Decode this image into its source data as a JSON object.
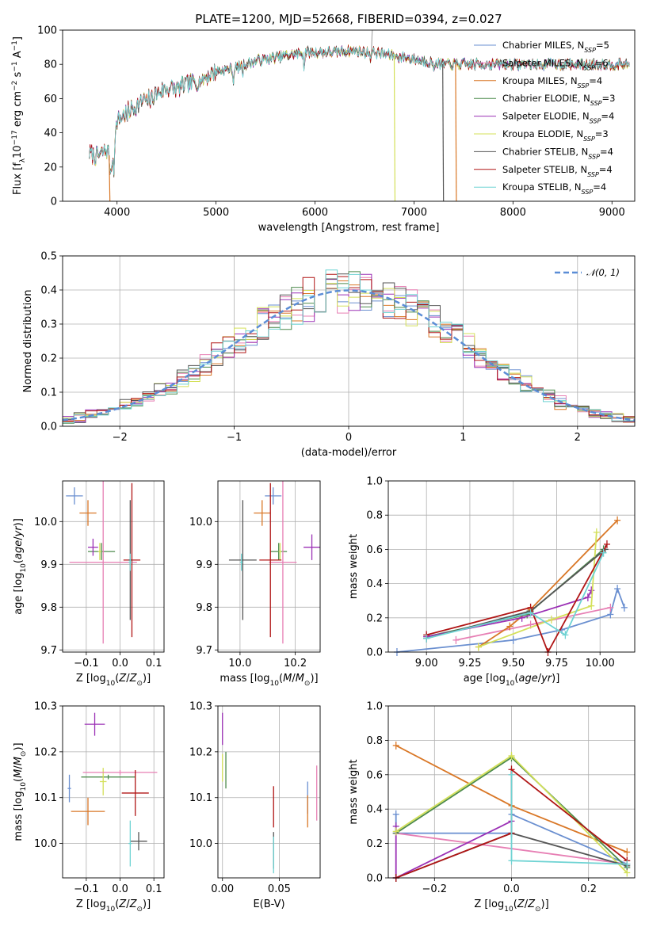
{
  "figure": {
    "title": "PLATE=1200, MJD=52668, FIBERID=0394, z=0.027"
  },
  "chart_data": [
    {
      "id": "spectrum",
      "type": "line",
      "title": "PLATE=1200, MJD=52668, FIBERID=0394, z=0.027",
      "xlabel": "wavelength [Angstrom, rest frame]",
      "ylabel": "Flux [fλ10⁻¹⁷ erg cm⁻² s⁻¹ A⁻¹]",
      "xlim": [
        3450,
        9230
      ],
      "ylim": [
        0,
        100
      ],
      "xticks": [
        4000,
        5000,
        6000,
        7000,
        8000,
        9000
      ],
      "yticks": [
        0,
        20,
        40,
        60,
        80,
        100
      ],
      "grid": false,
      "legend_position": "upper-right",
      "continuum": {
        "x": [
          3720,
          3800,
          3900,
          3950,
          4000,
          4100,
          4200,
          4300,
          4400,
          4500,
          4600,
          4700,
          4800,
          4900,
          5000,
          5100,
          5200,
          5300,
          5400,
          5500,
          5600,
          5700,
          5800,
          5900,
          6000,
          6100,
          6200,
          6300,
          6400,
          6500,
          6600,
          6700,
          6800,
          6900,
          7000,
          7100,
          7200,
          7300,
          7400,
          7500,
          7600,
          7700,
          7800,
          7900,
          8000,
          8100,
          8200,
          8300,
          8400,
          8500,
          8600,
          8700,
          8800,
          8900,
          9000,
          9100,
          9180
        ],
        "y": [
          28,
          26,
          30,
          22,
          47,
          52,
          56,
          60,
          63,
          66,
          66,
          68,
          70,
          73,
          76,
          77,
          78,
          80,
          82,
          83,
          84,
          85,
          86,
          87,
          87,
          87,
          87,
          88,
          88,
          87,
          87,
          86,
          85,
          84,
          83,
          82,
          81,
          80,
          80,
          80,
          80,
          80,
          80,
          80,
          80,
          80,
          80,
          80,
          80,
          80,
          80,
          80,
          80,
          80,
          80,
          80,
          80
        ]
      },
      "series": [
        {
          "name": "Chabrier MILES, N_SSP=5",
          "label_main": "Chabrier MILES, N",
          "label_sub": "SSP",
          "label_end": "=5",
          "color": "#6a8fd0"
        },
        {
          "name": "Salpeter MILES, N_SSP=6",
          "label_main": "Salpeter MILES, N",
          "label_sub": "SSP",
          "label_end": "=6",
          "color": "#e77fb4"
        },
        {
          "name": "Kroupa MILES, N_SSP=4",
          "label_main": "Kroupa MILES, N",
          "label_sub": "SSP",
          "label_end": "=4",
          "color": "#d97726"
        },
        {
          "name": "Chabrier ELODIE, N_SSP=3",
          "label_main": "Chabrier ELODIE, N",
          "label_sub": "SSP",
          "label_end": "=3",
          "color": "#4c8a4c"
        },
        {
          "name": "Salpeter ELODIE, N_SSP=4",
          "label_main": "Salpeter ELODIE, N",
          "label_sub": "SSP",
          "label_end": "=4",
          "color": "#9b30b5"
        },
        {
          "name": "Kroupa ELODIE, N_SSP=3",
          "label_main": "Kroupa ELODIE, N",
          "label_sub": "SSP",
          "label_end": "=3",
          "color": "#d4e05a"
        },
        {
          "name": "Chabrier STELIB, N_SSP=4",
          "label_main": "Chabrier STELIB, N",
          "label_sub": "SSP",
          "label_end": "=4",
          "color": "#555555"
        },
        {
          "name": "Salpeter STELIB, N_SSP=4",
          "label_main": "Salpeter STELIB, N",
          "label_sub": "SSP",
          "label_end": "=4",
          "color": "#b01515"
        },
        {
          "name": "Kroupa STELIB, N_SSP=4",
          "label_main": "Kroupa STELIB, N",
          "label_sub": "SSP",
          "label_end": "=4",
          "color": "#6fd3d3"
        }
      ],
      "dips": [
        {
          "x": 3920,
          "y_min": 0,
          "color": "#d97726"
        },
        {
          "x": 6800,
          "y_min": 0,
          "color": "#d4e05a"
        },
        {
          "x": 7290,
          "y_min": 0,
          "color": "#555555"
        },
        {
          "x": 7420,
          "y_min": 0,
          "color": "#d97726"
        },
        {
          "x": 6570,
          "y_max": 100,
          "color": "#aaaaaa"
        }
      ]
    },
    {
      "id": "residuals",
      "type": "histogram",
      "xlabel": "(data-model)/error",
      "ylabel": "Normed distribution",
      "xlim": [
        -2.5,
        2.5
      ],
      "ylim": [
        0,
        0.5
      ],
      "xticks": [
        -2,
        -1,
        0,
        1,
        2
      ],
      "xtick_labels": [
        "−2",
        "−1",
        "0",
        "1",
        "2"
      ],
      "yticks": [
        0,
        0.1,
        0.2,
        0.3,
        0.4,
        0.5
      ],
      "ytick_labels": [
        "0.0",
        "0.1",
        "0.2",
        "0.3",
        "0.4",
        "0.5"
      ],
      "grid": true,
      "bin_width": 0.1,
      "legend": "𝒩(0, 1)",
      "legend_position": "upper-right",
      "gaussian": {
        "mean": 0,
        "sigma": 1,
        "color": "#5b8dd6",
        "style": "dashed"
      }
    },
    {
      "id": "age-vs-Z",
      "type": "errorbar",
      "xlabel": "Z [log₁₀(Z/Z⊙)]",
      "ylabel": "age  [log₁₀(age/yr)]",
      "xlim": [
        -0.17,
        0.13
      ],
      "ylim": [
        9.695,
        10.095
      ],
      "xticks": [
        -0.1,
        0.0,
        0.1
      ],
      "xtick_labels": [
        "−0.1",
        "0.0",
        "0.1"
      ],
      "yticks": [
        9.7,
        9.8,
        9.9,
        10.0
      ],
      "ytick_labels": [
        "9.7",
        "9.8",
        "9.9",
        "10.0"
      ],
      "grid": true,
      "points": [
        {
          "x": -0.135,
          "y": 10.06,
          "xerr": 0.025,
          "yerr": 0.02,
          "color": "#6a8fd0"
        },
        {
          "x": -0.095,
          "y": 10.02,
          "xerr": 0.025,
          "yerr": 0.03,
          "color": "#d97726"
        },
        {
          "x": -0.055,
          "y": 9.93,
          "xerr": 0.04,
          "yerr": 0.02,
          "color": "#4c8a4c"
        },
        {
          "x": -0.06,
          "y": 9.93,
          "xerr": 0.005,
          "yerr": 0.02,
          "color": "#d4e05a"
        },
        {
          "x": -0.08,
          "y": 9.94,
          "xerr": 0.015,
          "yerr": 0.02,
          "color": "#9b30b5"
        },
        {
          "x": -0.05,
          "y": 9.905,
          "xerr": 0.1,
          "yerr": 0.19,
          "color": "#e77fb4"
        },
        {
          "x": 0.035,
          "y": 9.91,
          "xerr": 0.025,
          "yerr": 0.18,
          "color": "#b01515"
        },
        {
          "x": 0.03,
          "y": 9.91,
          "xerr": 0.005,
          "yerr": 0.14,
          "color": "#555555"
        },
        {
          "x": 0.03,
          "y": 9.905,
          "xerr": 0.005,
          "yerr": 0.02,
          "color": "#6fd3d3"
        }
      ]
    },
    {
      "id": "age-vs-mass",
      "type": "errorbar",
      "xlabel": "mass [log₁₀(M/M⊙)]",
      "ylabel": "",
      "xlim": [
        9.92,
        10.29
      ],
      "ylim": [
        9.695,
        10.095
      ],
      "xticks": [
        10.0,
        10.2
      ],
      "xtick_labels": [
        "10.0",
        "10.2"
      ],
      "yticks": [
        9.7,
        9.8,
        9.9,
        10.0
      ],
      "ytick_labels": [
        "9.7",
        "9.8",
        "9.9",
        "10.0"
      ],
      "grid": true,
      "points": [
        {
          "x": 10.12,
          "y": 10.06,
          "xerr": 0.03,
          "yerr": 0.02,
          "color": "#6a8fd0"
        },
        {
          "x": 10.08,
          "y": 10.02,
          "xerr": 0.03,
          "yerr": 0.03,
          "color": "#d97726"
        },
        {
          "x": 10.14,
          "y": 9.93,
          "xerr": 0.03,
          "yerr": 0.02,
          "color": "#4c8a4c"
        },
        {
          "x": 10.145,
          "y": 9.93,
          "xerr": 0.005,
          "yerr": 0.02,
          "color": "#d4e05a"
        },
        {
          "x": 10.26,
          "y": 9.94,
          "xerr": 0.03,
          "yerr": 0.03,
          "color": "#9b30b5"
        },
        {
          "x": 10.155,
          "y": 9.905,
          "xerr": 0.05,
          "yerr": 0.19,
          "color": "#e77fb4"
        },
        {
          "x": 10.11,
          "y": 9.91,
          "xerr": 0.04,
          "yerr": 0.18,
          "color": "#b01515"
        },
        {
          "x": 10.01,
          "y": 9.91,
          "xerr": 0.05,
          "yerr": 0.14,
          "color": "#555555"
        },
        {
          "x": 10.005,
          "y": 9.905,
          "xerr": 0.005,
          "yerr": 0.02,
          "color": "#6fd3d3"
        }
      ]
    },
    {
      "id": "massweight-vs-age",
      "type": "line",
      "xlabel": "age  [log₁₀(age/yr)]",
      "ylabel": "mass weight",
      "xlim": [
        8.78,
        10.2
      ],
      "ylim": [
        0,
        1
      ],
      "xticks": [
        9.0,
        9.25,
        9.5,
        9.75,
        10.0
      ],
      "xtick_labels": [
        "9.00",
        "9.25",
        "9.50",
        "9.75",
        "10.00"
      ],
      "yticks": [
        0,
        0.2,
        0.4,
        0.6,
        0.8,
        1.0
      ],
      "ytick_labels": [
        "0.0",
        "0.2",
        "0.4",
        "0.6",
        "0.8",
        "1.0"
      ],
      "grid": true,
      "series": [
        {
          "color": "#6a8fd0",
          "x": [
            8.83,
            9.5,
            9.78,
            10.06,
            10.1,
            10.14
          ],
          "y": [
            0.0,
            0.07,
            0.13,
            0.22,
            0.37,
            0.26
          ]
        },
        {
          "color": "#e77fb4",
          "x": [
            9.17,
            9.6,
            10.06
          ],
          "y": [
            0.07,
            0.16,
            0.26
          ]
        },
        {
          "color": "#d97726",
          "x": [
            9.3,
            9.48,
            9.6,
            10.1
          ],
          "y": [
            0.03,
            0.15,
            0.25,
            0.77
          ]
        },
        {
          "color": "#4c8a4c",
          "x": [
            9.0,
            9.58,
            10.02
          ],
          "y": [
            0.09,
            0.22,
            0.6
          ]
        },
        {
          "color": "#9b30b5",
          "x": [
            9.0,
            9.55,
            9.93,
            9.95
          ],
          "y": [
            0.09,
            0.2,
            0.32,
            0.36
          ]
        },
        {
          "color": "#d4e05a",
          "x": [
            9.3,
            9.72,
            9.95,
            9.98
          ],
          "y": [
            0.03,
            0.19,
            0.27,
            0.7
          ]
        },
        {
          "color": "#555555",
          "x": [
            9.0,
            9.6,
            10.03
          ],
          "y": [
            0.08,
            0.24,
            0.6
          ]
        },
        {
          "color": "#b01515",
          "x": [
            9.0,
            9.6,
            9.7,
            10.04
          ],
          "y": [
            0.1,
            0.26,
            0.0,
            0.63
          ]
        },
        {
          "color": "#6fd3d3",
          "x": [
            9.0,
            9.6,
            9.8,
            10.02
          ],
          "y": [
            0.08,
            0.23,
            0.1,
            0.58
          ]
        }
      ]
    },
    {
      "id": "mass-vs-Z",
      "type": "errorbar",
      "xlabel": "Z [log₁₀(Z/Z⊙)]",
      "ylabel": "mass [log₁₀(M/M⊙)]",
      "xlim": [
        -0.17,
        0.13
      ],
      "ylim": [
        9.925,
        10.3
      ],
      "xticks": [
        -0.1,
        0.0,
        0.1
      ],
      "xtick_labels": [
        "−0.1",
        "0.0",
        "0.1"
      ],
      "yticks": [
        10.0,
        10.1,
        10.2,
        10.3
      ],
      "ytick_labels": [
        "10.0",
        "10.1",
        "10.2",
        "10.3"
      ],
      "grid": true,
      "points": [
        {
          "x": -0.15,
          "y": 10.12,
          "xerr": 0.005,
          "yerr": 0.03,
          "color": "#6a8fd0"
        },
        {
          "x": -0.095,
          "y": 10.07,
          "xerr": 0.05,
          "yerr": 0.03,
          "color": "#d97726"
        },
        {
          "x": -0.035,
          "y": 10.145,
          "xerr": 0.08,
          "yerr": 0.005,
          "color": "#4c8a4c"
        },
        {
          "x": -0.05,
          "y": 10.135,
          "xerr": 0.01,
          "yerr": 0.03,
          "color": "#d4e05a"
        },
        {
          "x": -0.075,
          "y": 10.26,
          "xerr": 0.03,
          "yerr": 0.025,
          "color": "#9b30b5"
        },
        {
          "x": 0.0,
          "y": 10.155,
          "xerr": 0.11,
          "yerr": 0.005,
          "color": "#e77fb4"
        },
        {
          "x": 0.045,
          "y": 10.11,
          "xerr": 0.04,
          "yerr": 0.05,
          "color": "#b01515"
        },
        {
          "x": 0.055,
          "y": 10.005,
          "xerr": 0.025,
          "yerr": 0.02,
          "color": "#555555"
        },
        {
          "x": 0.03,
          "y": 10.0,
          "xerr": 0.005,
          "yerr": 0.05,
          "color": "#6fd3d3"
        }
      ]
    },
    {
      "id": "mass-vs-EBV",
      "type": "errorbar",
      "xlabel": "E(B-V)",
      "ylabel": "",
      "xlim": [
        -0.004,
        0.086
      ],
      "ylim": [
        9.925,
        10.3
      ],
      "xticks": [
        0.0,
        0.05
      ],
      "xtick_labels": [
        "0.00",
        "0.05"
      ],
      "yticks": [
        10.0,
        10.1,
        10.2,
        10.3
      ],
      "ytick_labels": [
        "10.0",
        "10.1",
        "10.2",
        "10.3"
      ],
      "grid": true,
      "points": [
        {
          "x": 0.075,
          "y": 10.1,
          "xerr": 0,
          "yerr": 0.035,
          "color": "#6a8fd0"
        },
        {
          "x": 0.083,
          "y": 10.11,
          "xerr": 0,
          "yerr": 0.06,
          "color": "#e77fb4"
        },
        {
          "x": 0.075,
          "y": 10.07,
          "xerr": 0,
          "yerr": 0.035,
          "color": "#d97726"
        },
        {
          "x": 0.003,
          "y": 10.16,
          "xerr": 0,
          "yerr": 0.04,
          "color": "#4c8a4c"
        },
        {
          "x": 0.0,
          "y": 10.25,
          "xerr": 0,
          "yerr": 0.035,
          "color": "#9b30b5"
        },
        {
          "x": 0.0,
          "y": 10.165,
          "xerr": 0,
          "yerr": 0.03,
          "color": "#d4e05a"
        },
        {
          "x": 0.045,
          "y": 9.985,
          "xerr": 0,
          "yerr": 0.04,
          "color": "#555555"
        },
        {
          "x": 0.045,
          "y": 10.08,
          "xerr": 0,
          "yerr": 0.045,
          "color": "#b01515"
        },
        {
          "x": 0.045,
          "y": 9.975,
          "xerr": 0,
          "yerr": 0.04,
          "color": "#6fd3d3"
        }
      ]
    },
    {
      "id": "massweight-vs-Z",
      "type": "line",
      "xlabel": "Z [log₁₀(Z/Z⊙)]",
      "ylabel": "mass weight",
      "xlim": [
        -0.32,
        0.32
      ],
      "ylim": [
        0,
        1
      ],
      "xticks": [
        -0.2,
        0.0,
        0.2
      ],
      "xtick_labels": [
        "−0.2",
        "0.0",
        "0.2"
      ],
      "yticks": [
        0,
        0.2,
        0.4,
        0.6,
        0.8,
        1.0
      ],
      "ytick_labels": [
        "0.0",
        "0.2",
        "0.4",
        "0.6",
        "0.8",
        "1.0"
      ],
      "grid": true,
      "series": [
        {
          "color": "#6a8fd0",
          "x": [
            -0.3,
            -0.3,
            0.0,
            0.0,
            0.3
          ],
          "y": [
            0.37,
            0.26,
            0.26,
            0.37,
            0.08
          ]
        },
        {
          "color": "#e77fb4",
          "x": [
            -0.3,
            0.3
          ],
          "y": [
            0.26,
            0.08
          ]
        },
        {
          "color": "#d97726",
          "x": [
            -0.3,
            0.0,
            0.3
          ],
          "y": [
            0.77,
            0.42,
            0.15
          ]
        },
        {
          "color": "#4c8a4c",
          "x": [
            -0.3,
            0.0,
            0.3
          ],
          "y": [
            0.26,
            0.7,
            0.06
          ]
        },
        {
          "color": "#9b30b5",
          "x": [
            -0.3,
            -0.3,
            0.0,
            0.0
          ],
          "y": [
            0.3,
            0.0,
            0.33,
            0.26
          ]
        },
        {
          "color": "#d4e05a",
          "x": [
            -0.3,
            0.0,
            0.3
          ],
          "y": [
            0.27,
            0.71,
            0.03
          ]
        },
        {
          "color": "#555555",
          "x": [
            -0.3,
            0.0,
            0.3
          ],
          "y": [
            0.0,
            0.26,
            0.07
          ]
        },
        {
          "color": "#b01515",
          "x": [
            -0.3,
            0.0,
            0.0,
            0.3
          ],
          "y": [
            0.0,
            0.26,
            0.63,
            0.1
          ]
        },
        {
          "color": "#6fd3d3",
          "x": [
            0.0,
            0.0,
            0.3
          ],
          "y": [
            0.6,
            0.1,
            0.08
          ]
        }
      ]
    }
  ]
}
